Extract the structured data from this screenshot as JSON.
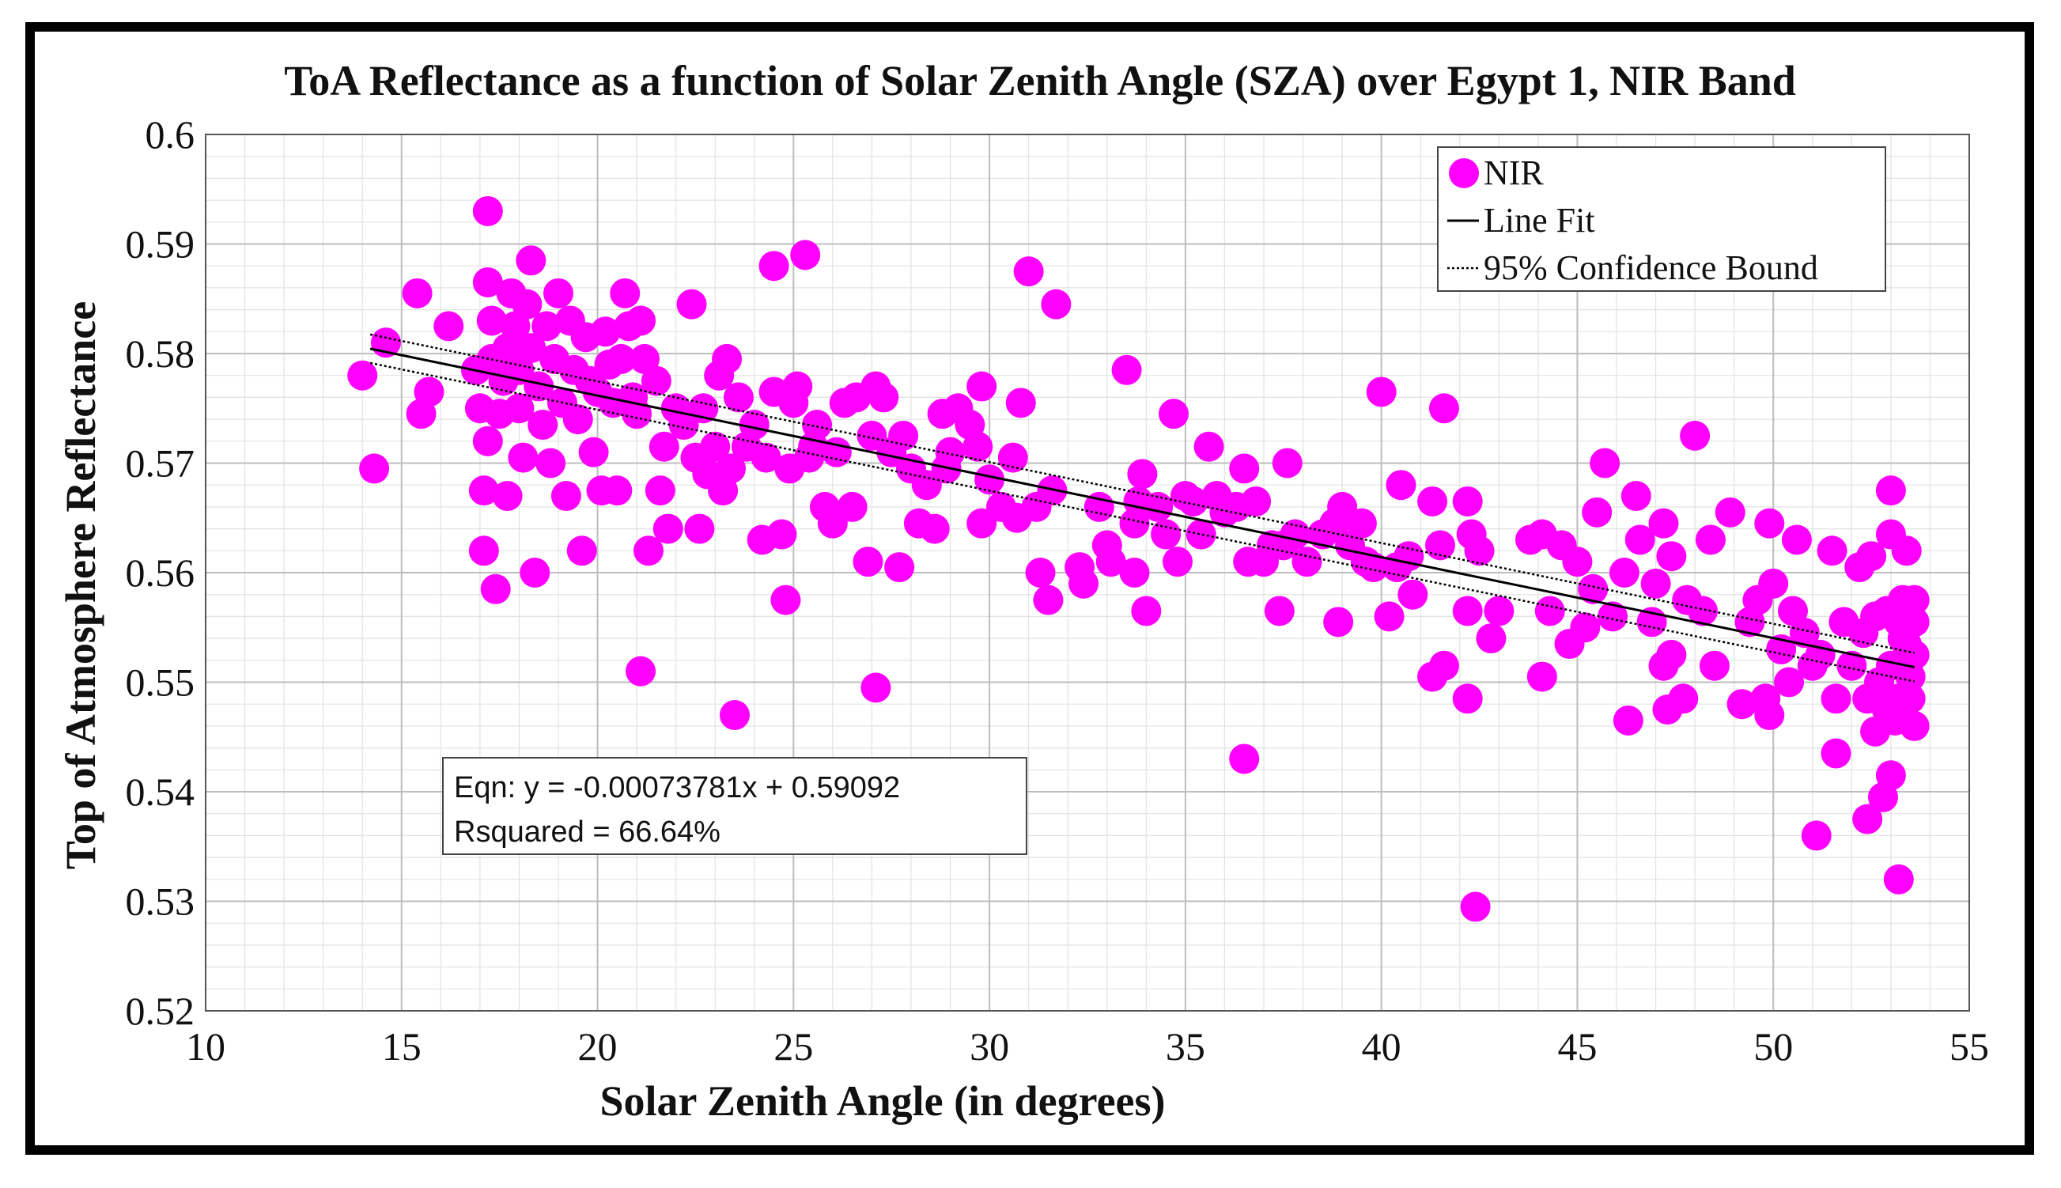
{
  "chart_data": {
    "type": "scatter",
    "title": "ToA Reflectance as a function of Solar Zenith Angle (SZA) over Egypt 1, NIR Band",
    "xlabel": "Solar Zenith Angle (in degrees)",
    "ylabel": "Top of Atmosphere Reflectance",
    "xlim": [
      10,
      55
    ],
    "ylim": [
      0.52,
      0.6
    ],
    "xticks": [
      10,
      15,
      20,
      25,
      30,
      35,
      40,
      45,
      50,
      55
    ],
    "yticks": [
      0.52,
      0.53,
      0.54,
      0.55,
      0.56,
      0.57,
      0.58,
      0.59,
      0.6
    ],
    "xtick_labels": [
      "10",
      "15",
      "20",
      "25",
      "30",
      "35",
      "40",
      "45",
      "50",
      "55"
    ],
    "ytick_labels": [
      "0.52",
      "0.53",
      "0.54",
      "0.55",
      "0.56",
      "0.57",
      "0.58",
      "0.59",
      "0.6"
    ],
    "grid": true,
    "minor_grid": true,
    "legend_position": "top-right",
    "legend": [
      "NIR",
      "Line Fit",
      "95% Confidence Bound"
    ],
    "colors": {
      "points": "#ff00ff",
      "fit": "#000000",
      "bounds": "#000000"
    },
    "fit": {
      "slope": -0.00073781,
      "intercept": 0.59092,
      "x_range": [
        14.2,
        53.6
      ],
      "ci_halfwidth": 0.0013
    },
    "annotation": {
      "eqn": "Eqn: y =  -0.00073781x + 0.59092",
      "rsquared": "Rsquared = 66.64%"
    },
    "series": [
      {
        "name": "NIR",
        "points": [
          [
            14.0,
            0.578
          ],
          [
            14.3,
            0.5695
          ],
          [
            14.6,
            0.581
          ],
          [
            15.4,
            0.5855
          ],
          [
            15.5,
            0.5745
          ],
          [
            15.7,
            0.5765
          ],
          [
            16.2,
            0.5825
          ],
          [
            16.9,
            0.5785
          ],
          [
            17.0,
            0.575
          ],
          [
            17.1,
            0.5675
          ],
          [
            17.1,
            0.562
          ],
          [
            17.2,
            0.593
          ],
          [
            17.2,
            0.5865
          ],
          [
            17.3,
            0.583
          ],
          [
            17.3,
            0.5795
          ],
          [
            17.2,
            0.572
          ],
          [
            17.4,
            0.5585
          ],
          [
            17.5,
            0.5745
          ],
          [
            17.6,
            0.5775
          ],
          [
            17.7,
            0.567
          ],
          [
            17.7,
            0.5805
          ],
          [
            17.8,
            0.5855
          ],
          [
            17.9,
            0.5825
          ],
          [
            18.0,
            0.5785
          ],
          [
            18.0,
            0.575
          ],
          [
            18.1,
            0.5705
          ],
          [
            18.2,
            0.5845
          ],
          [
            18.3,
            0.5885
          ],
          [
            18.3,
            0.5805
          ],
          [
            18.4,
            0.56
          ],
          [
            18.5,
            0.577
          ],
          [
            18.6,
            0.5735
          ],
          [
            18.7,
            0.5825
          ],
          [
            18.8,
            0.57
          ],
          [
            18.9,
            0.5795
          ],
          [
            19.0,
            0.5855
          ],
          [
            19.1,
            0.5755
          ],
          [
            19.2,
            0.567
          ],
          [
            19.3,
            0.583
          ],
          [
            19.4,
            0.5785
          ],
          [
            19.5,
            0.574
          ],
          [
            19.6,
            0.562
          ],
          [
            19.7,
            0.5815
          ],
          [
            19.8,
            0.5775
          ],
          [
            19.9,
            0.571
          ],
          [
            20.0,
            0.5765
          ],
          [
            20.1,
            0.5675
          ],
          [
            20.2,
            0.582
          ],
          [
            20.3,
            0.579
          ],
          [
            20.4,
            0.5755
          ],
          [
            20.5,
            0.5675
          ],
          [
            20.6,
            0.5795
          ],
          [
            20.7,
            0.5855
          ],
          [
            20.8,
            0.5825
          ],
          [
            20.9,
            0.576
          ],
          [
            21.0,
            0.5745
          ],
          [
            21.1,
            0.583
          ],
          [
            21.2,
            0.5795
          ],
          [
            21.3,
            0.562
          ],
          [
            21.1,
            0.551
          ],
          [
            21.5,
            0.5775
          ],
          [
            21.6,
            0.5675
          ],
          [
            21.7,
            0.5715
          ],
          [
            21.8,
            0.564
          ],
          [
            22.0,
            0.575
          ],
          [
            22.2,
            0.5735
          ],
          [
            22.4,
            0.5845
          ],
          [
            22.5,
            0.5705
          ],
          [
            22.6,
            0.564
          ],
          [
            22.7,
            0.575
          ],
          [
            22.8,
            0.569
          ],
          [
            23.0,
            0.5715
          ],
          [
            23.1,
            0.578
          ],
          [
            23.2,
            0.5675
          ],
          [
            23.3,
            0.5795
          ],
          [
            23.4,
            0.5695
          ],
          [
            23.5,
            0.547
          ],
          [
            23.6,
            0.576
          ],
          [
            23.8,
            0.5715
          ],
          [
            24.0,
            0.5735
          ],
          [
            24.2,
            0.563
          ],
          [
            24.3,
            0.5705
          ],
          [
            24.5,
            0.5765
          ],
          [
            24.5,
            0.588
          ],
          [
            24.7,
            0.5635
          ],
          [
            24.8,
            0.5575
          ],
          [
            24.9,
            0.5695
          ],
          [
            25.0,
            0.5755
          ],
          [
            25.1,
            0.577
          ],
          [
            25.3,
            0.589
          ],
          [
            25.4,
            0.5705
          ],
          [
            25.5,
            0.5715
          ],
          [
            25.6,
            0.5735
          ],
          [
            25.8,
            0.566
          ],
          [
            26.0,
            0.5645
          ],
          [
            26.1,
            0.571
          ],
          [
            26.3,
            0.5755
          ],
          [
            26.5,
            0.566
          ],
          [
            26.6,
            0.576
          ],
          [
            26.9,
            0.561
          ],
          [
            27.0,
            0.5725
          ],
          [
            27.1,
            0.577
          ],
          [
            27.1,
            0.5495
          ],
          [
            27.3,
            0.576
          ],
          [
            27.5,
            0.571
          ],
          [
            27.7,
            0.5605
          ],
          [
            27.8,
            0.5725
          ],
          [
            28.0,
            0.5695
          ],
          [
            28.2,
            0.5645
          ],
          [
            28.4,
            0.568
          ],
          [
            28.6,
            0.564
          ],
          [
            28.8,
            0.5745
          ],
          [
            28.9,
            0.5695
          ],
          [
            29.0,
            0.571
          ],
          [
            29.2,
            0.575
          ],
          [
            29.5,
            0.5735
          ],
          [
            29.7,
            0.5715
          ],
          [
            29.8,
            0.5645
          ],
          [
            29.8,
            0.577
          ],
          [
            30.0,
            0.5685
          ],
          [
            30.3,
            0.566
          ],
          [
            30.6,
            0.5705
          ],
          [
            30.7,
            0.565
          ],
          [
            30.8,
            0.5755
          ],
          [
            31.0,
            0.5875
          ],
          [
            31.2,
            0.566
          ],
          [
            31.3,
            0.56
          ],
          [
            31.5,
            0.5575
          ],
          [
            31.6,
            0.5675
          ],
          [
            31.7,
            0.5845
          ],
          [
            32.3,
            0.5605
          ],
          [
            32.4,
            0.559
          ],
          [
            32.8,
            0.566
          ],
          [
            33.0,
            0.5625
          ],
          [
            33.1,
            0.561
          ],
          [
            33.5,
            0.5785
          ],
          [
            33.7,
            0.5645
          ],
          [
            33.8,
            0.5665
          ],
          [
            33.9,
            0.569
          ],
          [
            33.7,
            0.56
          ],
          [
            34.0,
            0.5565
          ],
          [
            34.3,
            0.566
          ],
          [
            34.5,
            0.5635
          ],
          [
            34.7,
            0.5745
          ],
          [
            34.8,
            0.561
          ],
          [
            35.0,
            0.567
          ],
          [
            35.2,
            0.5665
          ],
          [
            35.4,
            0.5635
          ],
          [
            35.6,
            0.5715
          ],
          [
            35.8,
            0.567
          ],
          [
            36.0,
            0.5655
          ],
          [
            36.3,
            0.566
          ],
          [
            36.5,
            0.5695
          ],
          [
            36.5,
            0.543
          ],
          [
            36.6,
            0.561
          ],
          [
            36.8,
            0.5665
          ],
          [
            37.0,
            0.561
          ],
          [
            37.2,
            0.5625
          ],
          [
            37.4,
            0.5565
          ],
          [
            37.5,
            0.5625
          ],
          [
            37.6,
            0.57
          ],
          [
            37.8,
            0.5635
          ],
          [
            38.1,
            0.561
          ],
          [
            38.5,
            0.5635
          ],
          [
            38.8,
            0.5645
          ],
          [
            38.9,
            0.5555
          ],
          [
            39.0,
            0.566
          ],
          [
            39.2,
            0.5625
          ],
          [
            39.5,
            0.5645
          ],
          [
            39.6,
            0.561
          ],
          [
            39.8,
            0.5605
          ],
          [
            40.0,
            0.5765
          ],
          [
            40.2,
            0.556
          ],
          [
            40.4,
            0.5605
          ],
          [
            40.5,
            0.568
          ],
          [
            40.7,
            0.5615
          ],
          [
            40.8,
            0.558
          ],
          [
            41.3,
            0.5505
          ],
          [
            41.3,
            0.5665
          ],
          [
            41.5,
            0.5625
          ],
          [
            41.6,
            0.5515
          ],
          [
            41.6,
            0.575
          ],
          [
            42.2,
            0.5665
          ],
          [
            42.2,
            0.5565
          ],
          [
            42.2,
            0.5485
          ],
          [
            42.3,
            0.5635
          ],
          [
            42.4,
            0.5295
          ],
          [
            42.5,
            0.562
          ],
          [
            42.8,
            0.554
          ],
          [
            43.0,
            0.5565
          ],
          [
            43.8,
            0.563
          ],
          [
            44.1,
            0.5635
          ],
          [
            44.1,
            0.5505
          ],
          [
            44.3,
            0.5565
          ],
          [
            44.6,
            0.5625
          ],
          [
            44.8,
            0.5535
          ],
          [
            45.0,
            0.561
          ],
          [
            45.2,
            0.555
          ],
          [
            45.4,
            0.5585
          ],
          [
            45.5,
            0.5655
          ],
          [
            45.7,
            0.57
          ],
          [
            45.9,
            0.556
          ],
          [
            46.2,
            0.56
          ],
          [
            46.3,
            0.5465
          ],
          [
            46.5,
            0.567
          ],
          [
            46.6,
            0.563
          ],
          [
            46.9,
            0.5555
          ],
          [
            47.0,
            0.559
          ],
          [
            47.2,
            0.5645
          ],
          [
            47.2,
            0.5515
          ],
          [
            47.3,
            0.5475
          ],
          [
            47.4,
            0.5525
          ],
          [
            47.4,
            0.5615
          ],
          [
            47.7,
            0.5485
          ],
          [
            47.8,
            0.5575
          ],
          [
            48.0,
            0.5725
          ],
          [
            48.2,
            0.5565
          ],
          [
            48.4,
            0.563
          ],
          [
            48.5,
            0.5515
          ],
          [
            48.9,
            0.5655
          ],
          [
            49.2,
            0.548
          ],
          [
            49.4,
            0.5555
          ],
          [
            49.6,
            0.5575
          ],
          [
            49.8,
            0.5485
          ],
          [
            49.9,
            0.5645
          ],
          [
            49.9,
            0.547
          ],
          [
            50.0,
            0.559
          ],
          [
            50.2,
            0.553
          ],
          [
            50.4,
            0.55
          ],
          [
            50.5,
            0.5565
          ],
          [
            50.6,
            0.563
          ],
          [
            50.8,
            0.5545
          ],
          [
            51.0,
            0.5515
          ],
          [
            51.1,
            0.536
          ],
          [
            51.2,
            0.5525
          ],
          [
            51.5,
            0.562
          ],
          [
            51.6,
            0.5485
          ],
          [
            51.6,
            0.5435
          ],
          [
            51.8,
            0.5555
          ],
          [
            52.0,
            0.5515
          ],
          [
            52.2,
            0.5605
          ],
          [
            52.3,
            0.5545
          ],
          [
            52.4,
            0.5485
          ],
          [
            52.4,
            0.5375
          ],
          [
            52.5,
            0.5615
          ],
          [
            52.6,
            0.556
          ],
          [
            52.6,
            0.5455
          ],
          [
            52.7,
            0.55
          ],
          [
            52.8,
            0.5395
          ],
          [
            52.9,
            0.5475
          ],
          [
            52.9,
            0.5565
          ],
          [
            53.0,
            0.5675
          ],
          [
            53.0,
            0.5635
          ],
          [
            53.0,
            0.5515
          ],
          [
            53.0,
            0.5415
          ],
          [
            53.1,
            0.5465
          ],
          [
            53.2,
            0.532
          ],
          [
            53.2,
            0.5555
          ],
          [
            53.2,
            0.5485
          ],
          [
            53.3,
            0.5575
          ],
          [
            53.3,
            0.554
          ],
          [
            53.4,
            0.562
          ],
          [
            53.4,
            0.5535
          ],
          [
            53.5,
            0.5505
          ],
          [
            53.5,
            0.5485
          ],
          [
            53.6,
            0.5575
          ],
          [
            53.6,
            0.5555
          ],
          [
            53.6,
            0.5525
          ],
          [
            53.6,
            0.546
          ]
        ]
      }
    ]
  }
}
